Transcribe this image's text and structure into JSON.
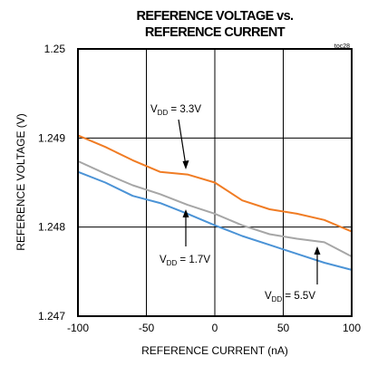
{
  "chart_data": {
    "type": "line",
    "title_line1": "REFERENCE VOLTAGE vs.",
    "title_line2": "REFERENCE CURRENT",
    "figure_id": "toc28",
    "xlabel": "REFERENCE CURRENT (nA)",
    "ylabel": "REFERENCE VOLTAGE (V)",
    "xlim": [
      -100,
      100
    ],
    "ylim": [
      1.247,
      1.25
    ],
    "x_ticks": [
      -100,
      -50,
      0,
      50,
      100
    ],
    "y_ticks": [
      1.247,
      1.248,
      1.249,
      1.25
    ],
    "x_tick_labels": [
      "-100",
      "-50",
      "0",
      "50",
      "100"
    ],
    "y_tick_labels": [
      "1.247",
      "1.248",
      "1.249",
      "1.25"
    ],
    "grid": true,
    "series": [
      {
        "annotation_prefix": "V",
        "annotation_sub": "DD",
        "annotation_value": " = 3.3V",
        "color": "#f07c24",
        "x": [
          -100,
          -80,
          -60,
          -40,
          -20,
          0,
          20,
          40,
          60,
          80,
          100
        ],
        "y": [
          1.24903,
          1.2489,
          1.24875,
          1.24862,
          1.24859,
          1.2485,
          1.2483,
          1.2482,
          1.24815,
          1.24808,
          1.24795
        ]
      },
      {
        "annotation_prefix": "V",
        "annotation_sub": "DD",
        "annotation_value": " = 1.7V",
        "color": "#4b93d6",
        "x": [
          -100,
          -80,
          -60,
          -40,
          -20,
          0,
          20,
          40,
          60,
          80,
          100
        ],
        "y": [
          1.24862,
          1.2485,
          1.24835,
          1.24827,
          1.24815,
          1.24802,
          1.2479,
          1.2478,
          1.2477,
          1.2476,
          1.24752
        ]
      },
      {
        "annotation_prefix": "V",
        "annotation_sub": "DD",
        "annotation_value": " = 5.5V",
        "color": "#a6a6a6",
        "x": [
          -100,
          -80,
          -60,
          -40,
          -20,
          0,
          20,
          40,
          60,
          80,
          100
        ],
        "y": [
          1.24874,
          1.2486,
          1.24847,
          1.24837,
          1.24825,
          1.24815,
          1.24802,
          1.24792,
          1.24787,
          1.24783,
          1.24767
        ]
      }
    ]
  }
}
